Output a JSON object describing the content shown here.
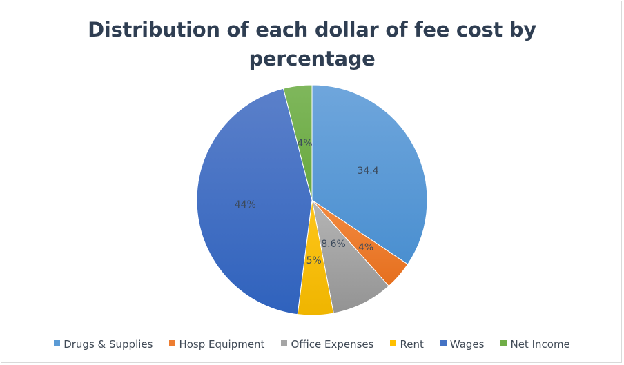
{
  "chart_data": {
    "type": "pie",
    "title": "Distribution of each dollar of fee cost by percentage",
    "title_lines": [
      "Distribution of each dollar of fee cost by",
      "percentage"
    ],
    "categories": [
      "Drugs & Supplies",
      "Hosp Equipment",
      "Office Expenses",
      "Rent",
      "Wages",
      "Net Income"
    ],
    "values": [
      34.4,
      4,
      8.6,
      5,
      44,
      4
    ],
    "data_labels": [
      "34.4",
      "4%",
      "8.6%",
      "5%",
      "44%",
      "4%"
    ],
    "colors": [
      "#5b9bd5",
      "#ed7d31",
      "#a5a5a5",
      "#ffc000",
      "#4472c4",
      "#70ad47"
    ],
    "start_angle": "12 o'clock",
    "direction": "clockwise",
    "legend_position": "bottom"
  },
  "legend": [
    {
      "label": "Drugs & Supplies",
      "color": "#5b9bd5"
    },
    {
      "label": "Hosp Equipment",
      "color": "#ed7d31"
    },
    {
      "label": "Office Expenses",
      "color": "#a5a5a5"
    },
    {
      "label": "Rent",
      "color": "#ffc000"
    },
    {
      "label": "Wages",
      "color": "#4472c4"
    },
    {
      "label": "Net Income",
      "color": "#70ad47"
    }
  ]
}
